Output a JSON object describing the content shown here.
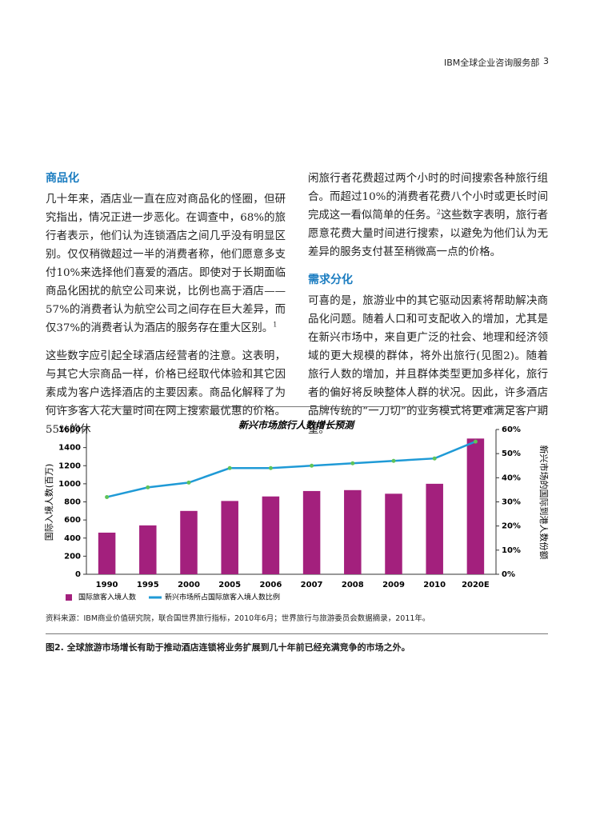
{
  "header": {
    "title": "IBM全球企业咨询服务部",
    "page": "3"
  },
  "left_column": {
    "heading": "商品化",
    "paragraphs": [
      {
        "text": "几十年来，酒店业一直在应对商品化的怪圈，但研究指出，情况正进一步恶化。在调查中，68%的旅行者表示，他们认为连锁酒店之间几乎没有明显区别。仅仅稍微超过一半的消费者称，他们愿意多支付10%来选择他们喜爱的酒店。即使对于长期面临商品化困扰的航空公司来说，比例也高于酒店——57%的消费者认为航空公司之间存在巨大差异，而仅37%的消费者认为酒店的服务存在重大区别。",
        "footnote": "1"
      },
      {
        "text": "这些数字应引起全球酒店经营者的注意。这表明，与其它大宗商品一样，价格已经取代体验和其它因素成为客户选择酒店的主要因素。商品化解释了为何许多客人花大量时间在网上搜索最优惠的价格。55%的休"
      }
    ]
  },
  "right_column": {
    "continuation": {
      "text": "闲旅行者花费超过两个小时的时间搜索各种旅行组合。而超过10%的消费者花费八个小时或更长时间完成这一看似简单的任务。",
      "footnote": "2",
      "text_after": "这些数字表明，旅行者愿意花费大量时间进行搜索，以避免为他们认为无差异的服务支付甚至稍微高一点的价格。"
    },
    "heading": "需求分化",
    "paragraph": "可喜的是，旅游业中的其它驱动因素将帮助解决商品化问题。随着人口和可支配收入的增加，尤其是在新兴市场中，来自更广泛的社会、地理和经济领域的更大规模的群体，将外出旅行(见图2)。随着旅行人数的增加，并且群体类型更加多样化，旅行者的偏好将反映整体人群的状况。因此，许多酒店品牌传统的“一刀切”的业务模式将更难满足客户期望。"
  },
  "chart_data": {
    "type": "bar",
    "title": "新兴市场旅行人数增长预测",
    "y_label": "国际入境人数(百万)",
    "y2_label": "新兴市场的国际到港人数份额",
    "categories": [
      "1990",
      "1995",
      "2000",
      "2005",
      "2006",
      "2007",
      "2008",
      "2009",
      "2010",
      "2020E"
    ],
    "series": [
      {
        "name": "国际旅客入境人数",
        "type": "bar",
        "color": "#a3207d",
        "values": [
          460,
          540,
          700,
          810,
          860,
          920,
          930,
          890,
          1000,
          1500
        ]
      },
      {
        "name": "新兴市场所占国际旅客入境人数比例",
        "type": "line",
        "axis": "y2",
        "color": "#1f9ad6",
        "values": [
          32,
          36,
          38,
          44,
          44,
          45,
          46,
          47,
          48,
          55
        ]
      }
    ],
    "ylim": [
      0,
      1600
    ],
    "yticks": [
      0,
      200,
      400,
      600,
      800,
      1000,
      1200,
      1400,
      1600
    ],
    "y2lim": [
      0,
      60
    ],
    "y2ticks": [
      {
        "value": 0,
        "label": "0%"
      },
      {
        "value": 10,
        "label": "10%"
      },
      {
        "value": 20,
        "label": "20%"
      },
      {
        "value": 30,
        "label": "30%"
      },
      {
        "value": 40,
        "label": "40%"
      },
      {
        "value": 50,
        "label": "50%"
      },
      {
        "value": 60,
        "label": "60%"
      }
    ],
    "legend": "bottom-left",
    "grid": false
  },
  "source": "资料来源：IBM商业价值研究院，联合国世界旅行指标，2010年6月；世界旅行与旅游委员会数据摘录，2011年。",
  "caption": "图2. 全球旅游市场增长有助于推动酒店连锁将业务扩展到几十年前已经充满竞争的市场之外。"
}
